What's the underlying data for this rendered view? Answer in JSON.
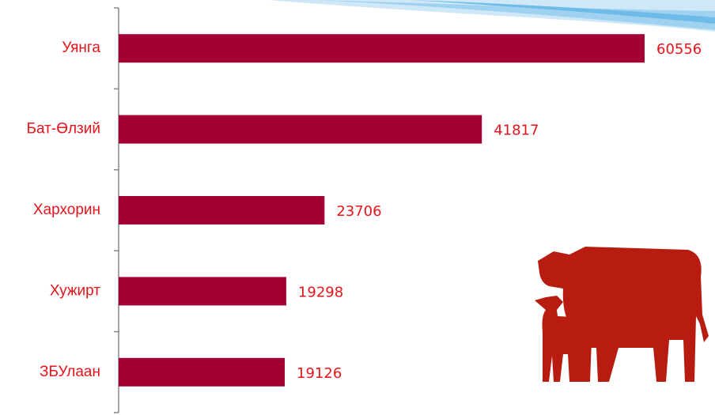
{
  "chart_data": {
    "type": "bar",
    "orientation": "horizontal",
    "categories": [
      "Уянга",
      "Бат-Өлзий",
      "Хархорин",
      "Хужирт",
      "ЗБУлаан"
    ],
    "values": [
      60556,
      41817,
      23706,
      19298,
      19126
    ],
    "color": "#a50034"
  }
}
